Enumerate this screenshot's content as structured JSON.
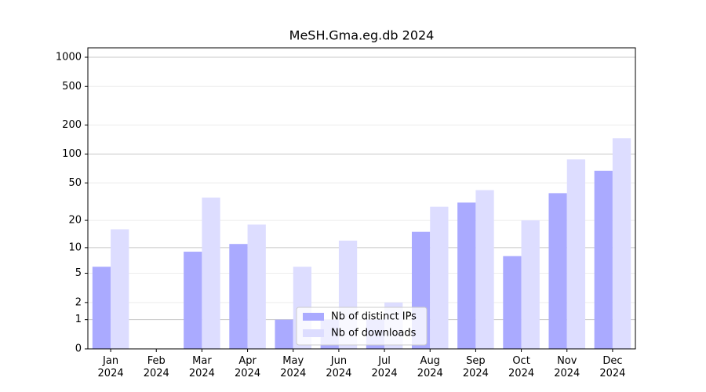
{
  "chart_data": {
    "type": "bar",
    "title": "MeSH.Gma.eg.db 2024",
    "categories": [
      "Jan\n2024",
      "Feb\n2024",
      "Mar\n2024",
      "Apr\n2024",
      "May\n2024",
      "Jun\n2024",
      "Jul\n2024",
      "Aug\n2024",
      "Sep\n2024",
      "Oct\n2024",
      "Nov\n2024",
      "Dec\n2024"
    ],
    "series": [
      {
        "name": "Nb of distinct IPs",
        "color": "#aaaaff",
        "values": [
          6,
          0,
          9,
          11,
          1,
          1,
          1,
          15,
          31,
          8,
          39,
          67
        ]
      },
      {
        "name": "Nb of downloads",
        "color": "#ddddff",
        "values": [
          16,
          0,
          35,
          18,
          6,
          12,
          2,
          28,
          42,
          20,
          88,
          146
        ]
      }
    ],
    "yscale": "log1p",
    "ylim": [
      0,
      1250
    ],
    "yticks": [
      0,
      1,
      2,
      5,
      10,
      20,
      50,
      100,
      200,
      500,
      1000
    ],
    "grid": true,
    "legend": "lower center"
  }
}
